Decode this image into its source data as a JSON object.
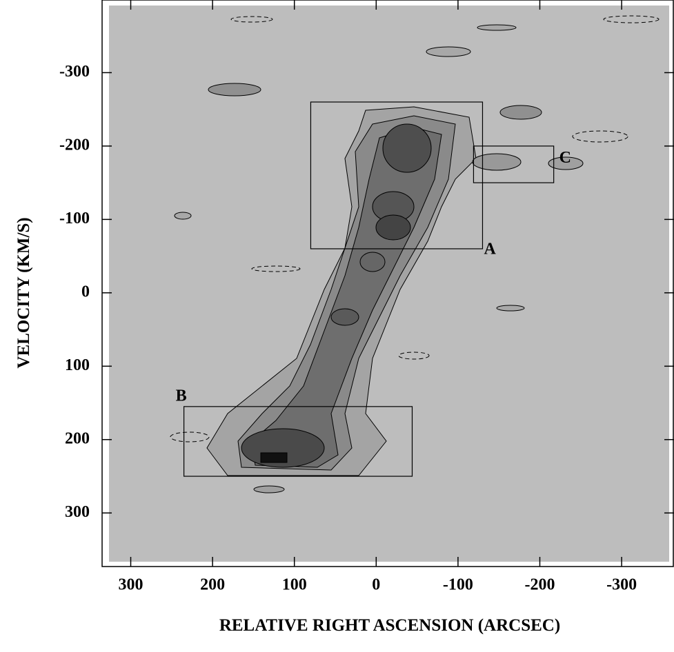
{
  "chart_data": {
    "type": "image",
    "x_label": "RELATIVE RIGHT ASCENSION (ARCSEC)",
    "y_label": "VELOCITY (KM/S)",
    "xlim": [
      335,
      -364
    ],
    "ylim": [
      -399,
      373
    ],
    "xticks": [
      300,
      200,
      100,
      0,
      -100,
      -200,
      -300
    ],
    "yticks": [
      -300,
      -200,
      -100,
      0,
      100,
      200,
      300
    ],
    "boxes": [
      {
        "label": "A",
        "x": [
          80,
          -130
        ],
        "y": [
          -260,
          -60
        ]
      },
      {
        "label": "B",
        "x": [
          235,
          -44
        ],
        "y": [
          155,
          250
        ]
      },
      {
        "label": "C",
        "x": [
          -119,
          -217
        ],
        "y": [
          -200,
          -150
        ]
      }
    ]
  }
}
